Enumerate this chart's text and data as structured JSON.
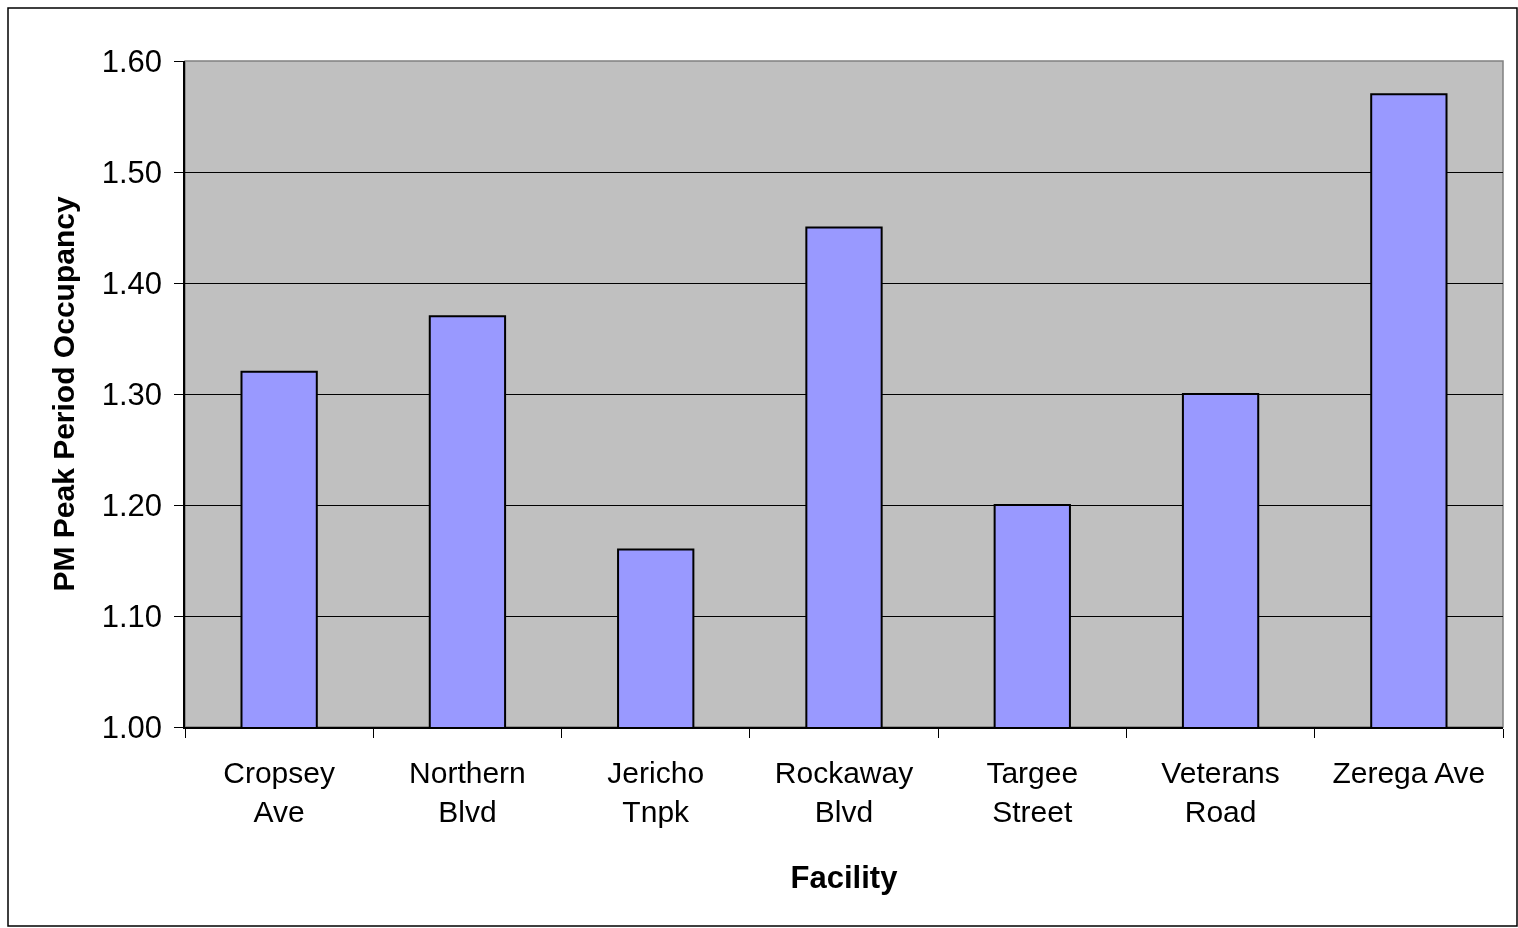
{
  "chart_data": {
    "type": "bar",
    "xlabel": "Facility",
    "ylabel": "PM Peak Period Occupancy",
    "categories": [
      "Cropsey\nAve",
      "Northern\nBlvd",
      "Jericho\nTnpk",
      "Rockaway\nBlvd",
      "Targee\nStreet",
      "Veterans\nRoad",
      "Zerega Ave"
    ],
    "values": [
      1.32,
      1.37,
      1.16,
      1.45,
      1.2,
      1.3,
      1.57
    ],
    "color": "#9999ff",
    "ylim": [
      1.0,
      1.6
    ],
    "yticks": [
      {
        "value": 1.0,
        "label": "1.00"
      },
      {
        "value": 1.1,
        "label": "1.10"
      },
      {
        "value": 1.2,
        "label": "1.20"
      },
      {
        "value": 1.3,
        "label": "1.30"
      },
      {
        "value": 1.4,
        "label": "1.40"
      },
      {
        "value": 1.5,
        "label": "1.50"
      },
      {
        "value": 1.6,
        "label": "1.60"
      }
    ],
    "grid": "y"
  }
}
